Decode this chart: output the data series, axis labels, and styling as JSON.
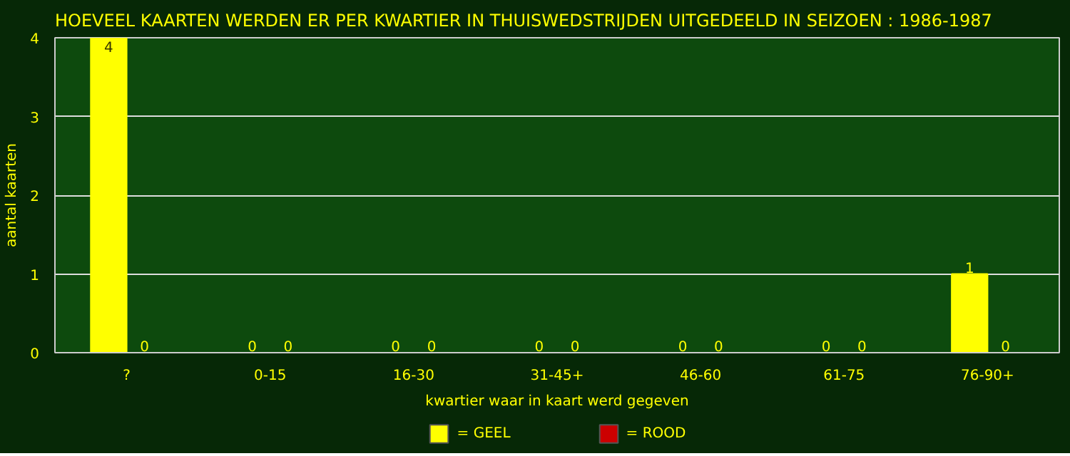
{
  "chart_data": {
    "type": "bar",
    "title": "HOEVEEL KAARTEN WERDEN ER PER KWARTIER IN THUISWEDSTRIJDEN UITGEDEELD IN SEIZOEN : 1986-1987",
    "xlabel": "kwartier waar in kaart werd gegeven",
    "ylabel": "aantal kaarten",
    "categories": [
      "?",
      "0-15",
      "16-30",
      "31-45+",
      "46-60",
      "61-75",
      "76-90+"
    ],
    "series": [
      {
        "name": "= GEEL",
        "color": "#ffff00",
        "values": [
          4,
          0,
          0,
          0,
          0,
          0,
          1
        ]
      },
      {
        "name": "= ROOD",
        "color": "#cc0000",
        "values": [
          0,
          0,
          0,
          0,
          0,
          0,
          0
        ]
      }
    ],
    "ylim": [
      0,
      4
    ],
    "yticks": [
      0,
      1,
      2,
      3,
      4
    ],
    "grid": "y",
    "legend": "bottom",
    "data_labels": true
  }
}
